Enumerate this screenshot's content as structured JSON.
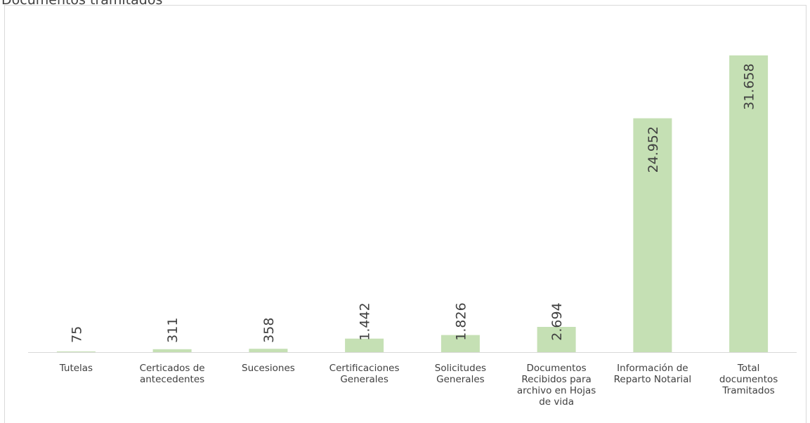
{
  "chart_data": {
    "type": "bar",
    "title": "Documentos tramitados",
    "xlabel": "",
    "ylabel": "",
    "ylim": [
      0,
      33000
    ],
    "grid": false,
    "legend": "none",
    "value_labels": "inside-end-rotated",
    "categories": [
      [
        "Tutelas"
      ],
      [
        "Certicados de",
        "antecedentes"
      ],
      [
        "Sucesiones"
      ],
      [
        "Certificaciones",
        "Generales"
      ],
      [
        "Solicitudes",
        "Generales"
      ],
      [
        "Documentos",
        "Recibidos para",
        "archivo en Hojas",
        "de vida"
      ],
      [
        "Información de",
        "Reparto Notarial"
      ],
      [
        "Total",
        "documentos",
        "Tramitados"
      ]
    ],
    "values": [
      75,
      311,
      358,
      1442,
      1826,
      2694,
      24952,
      31658
    ],
    "value_text": [
      "75",
      "311",
      "358",
      "1.442",
      "1.826",
      "2.694",
      "24.952",
      "31.658"
    ],
    "colors": {
      "bar": "#c5e0b4",
      "axis": "#d9d9d9",
      "label": "#404040",
      "category_text": "#404040"
    }
  }
}
